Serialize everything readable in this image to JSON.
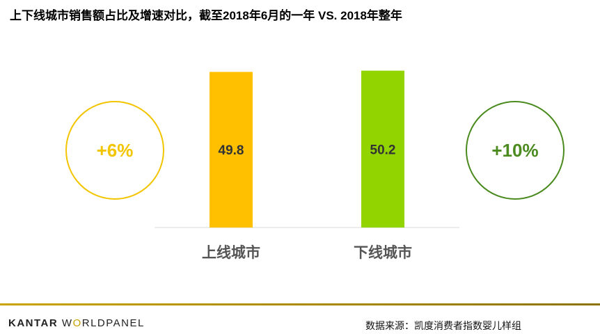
{
  "title": "上下线城市销售额占比及增速对比，截至2018年6月的一年 VS. 2018年整年",
  "chart_data": {
    "type": "bar",
    "categories": [
      "上线城市",
      "下线城市"
    ],
    "values": [
      49.8,
      50.2
    ],
    "value_labels": [
      "49.8",
      "50.2"
    ],
    "growth_labels": [
      "+6%",
      "+10%"
    ],
    "colors": [
      "#FFC000",
      "#92D400"
    ],
    "growth_colors": [
      "#F2C500",
      "#4A8A1E"
    ],
    "ylim": [
      0,
      55
    ],
    "title": "上下线城市销售额占比及增速对比，截至2018年6月的一年 VS. 2018年整年",
    "xlabel": "",
    "ylabel": ""
  },
  "footer": {
    "brand_part1": "KANTAR",
    "brand_part2": "W",
    "brand_part3": "O",
    "brand_part4": "RLDPANEL",
    "source": "数据来源：凯度消费者指数婴儿样组"
  }
}
